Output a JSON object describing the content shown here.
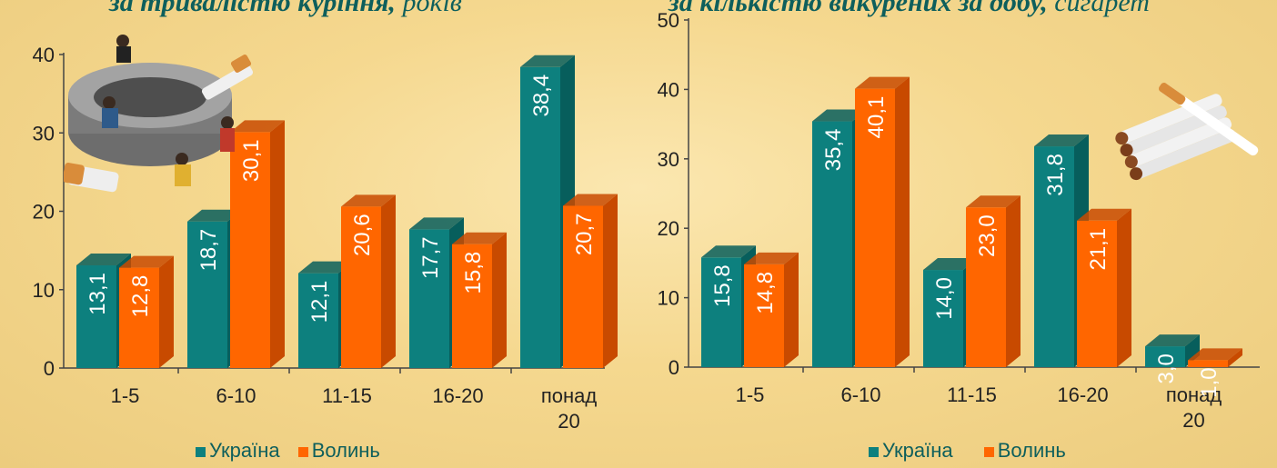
{
  "titles": {
    "left": {
      "main": "за тривалістю куріння,",
      "unit": "років"
    },
    "right": {
      "main": "за кількістю викурених за добу,",
      "unit": "сигарет"
    }
  },
  "colors": {
    "ukraine": "#0d807e",
    "volyn": "#ff6600",
    "ukraine_side": "#075e5c",
    "volyn_side": "#c84a00"
  },
  "decorations": [
    "ashtray-with-people-illustration",
    "cigarettes-illustration"
  ],
  "chart_data": [
    {
      "type": "bar",
      "title": "за тривалістю куріння, років",
      "categories": [
        "1-5",
        "6-10",
        "11-15",
        "16-20",
        "понад 20"
      ],
      "series": [
        {
          "name": "Україна",
          "values": [
            13.1,
            18.7,
            12.1,
            17.7,
            38.4
          ]
        },
        {
          "name": "Волинь",
          "values": [
            12.8,
            30.1,
            20.6,
            15.8,
            20.7
          ]
        }
      ],
      "value_labels": {
        "Україна": [
          "13,1",
          "18,7",
          "12,1",
          "17,7",
          "38,4"
        ],
        "Волинь": [
          "12,8",
          "30,1",
          "20,6",
          "15,8",
          "20,7"
        ]
      },
      "ylim": [
        0,
        40
      ],
      "yticks": [
        0,
        10,
        20,
        30,
        40
      ],
      "legend": "bottom",
      "grid": false
    },
    {
      "type": "bar",
      "title": "за кількістю викурених за добу, сигарет",
      "categories": [
        "1-5",
        "6-10",
        "11-15",
        "16-20",
        "понад 20"
      ],
      "series": [
        {
          "name": "Україна",
          "values": [
            15.8,
            35.4,
            14.0,
            31.8,
            3.0
          ]
        },
        {
          "name": "Волинь",
          "values": [
            14.8,
            40.1,
            23.0,
            21.1,
            1.0
          ]
        }
      ],
      "value_labels": {
        "Україна": [
          "15,8",
          "35,4",
          "14,0",
          "31,8",
          "3,0"
        ],
        "Волинь": [
          "14,8",
          "40,1",
          "23,0",
          "21,1",
          "1,0"
        ]
      },
      "ylim": [
        0,
        50
      ],
      "yticks": [
        0,
        10,
        20,
        30,
        40,
        50
      ],
      "legend": "bottom",
      "grid": false
    }
  ]
}
